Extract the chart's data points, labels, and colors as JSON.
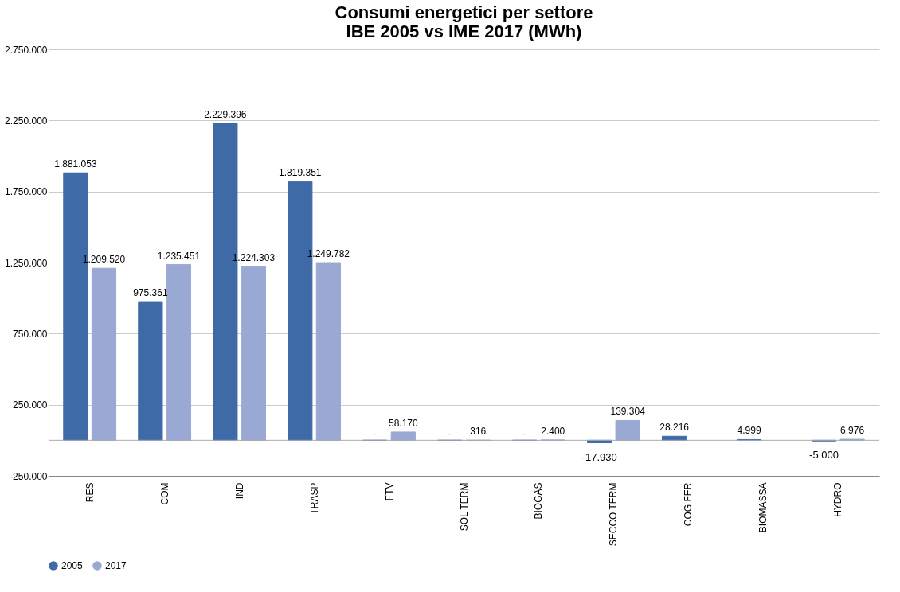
{
  "chart_data": {
    "type": "bar",
    "title": [
      "Consumi energetici per settore",
      "IBE 2005 vs IME 2017 (MWh)"
    ],
    "categories": [
      "RES",
      "COM",
      "IND",
      "TRASP",
      "FTV",
      "SOL TERM",
      "BIOGAS",
      "SECCO TERM",
      "COG FER",
      "BIOMASSA",
      "HYDRO"
    ],
    "series": [
      {
        "name": "2005",
        "color": "#3f6aa8",
        "values": [
          1881053,
          975361,
          2229396,
          1819351,
          0,
          0,
          0,
          -17930,
          28216,
          4999,
          -5000
        ],
        "value_labels": [
          "1.881.053",
          "975.361",
          "2.229.396",
          "1.819.351",
          "-",
          "-",
          "-",
          "-17.930",
          "28.216",
          "4.999",
          "-5.000"
        ]
      },
      {
        "name": "2017",
        "color": "#9aa9d3",
        "values": [
          1209520,
          1235451,
          1224303,
          1249782,
          58170,
          316,
          2400,
          139304,
          null,
          null,
          6976
        ],
        "value_labels": [
          "1.209.520",
          "1.235.451",
          "1.224.303",
          "1.249.782",
          "58.170",
          "316",
          "2.400",
          "139.304",
          null,
          null,
          "6.976"
        ]
      }
    ],
    "ylim": [
      -250000,
      2750000
    ],
    "yticks": [
      {
        "value": -250000,
        "label": "-250.000"
      },
      {
        "value": 250000,
        "label": "250.000"
      },
      {
        "value": 750000,
        "label": "750.000"
      },
      {
        "value": 1250000,
        "label": "1.250.000"
      },
      {
        "value": 1750000,
        "label": "1.750.000"
      },
      {
        "value": 2250000,
        "label": "2.250.000"
      },
      {
        "value": 2750000,
        "label": "2.750.000"
      }
    ],
    "grid": "y",
    "legend": "bottom"
  }
}
